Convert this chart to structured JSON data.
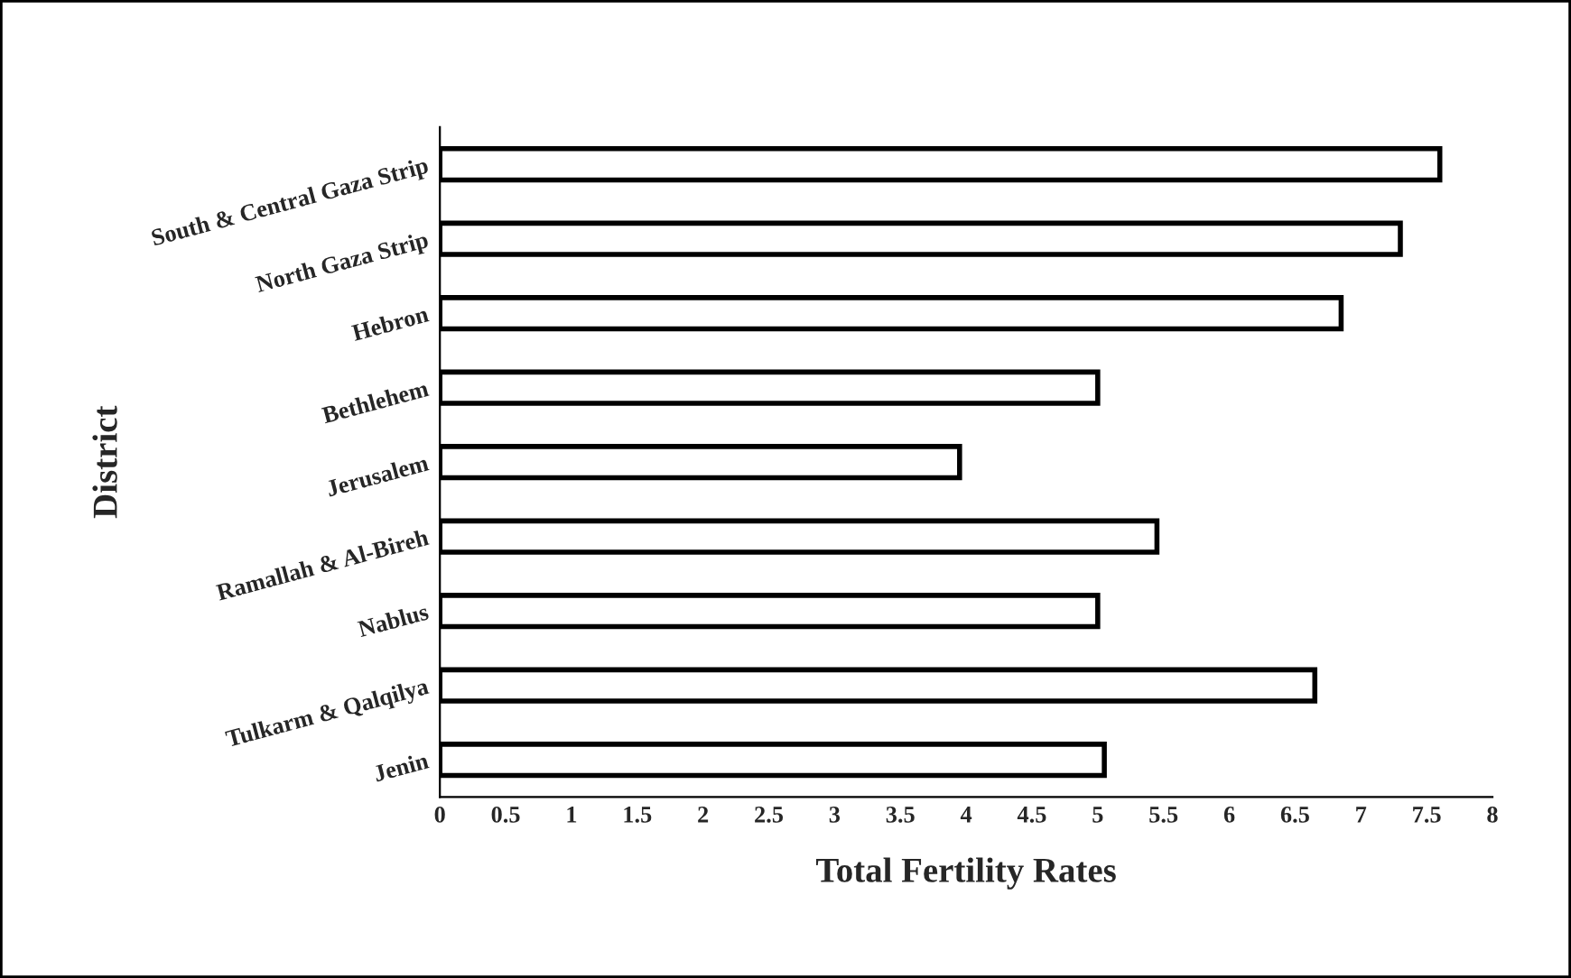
{
  "chart_data": {
    "type": "bar",
    "orientation": "horizontal",
    "xlabel": "Total Fertility Rates",
    "ylabel": "District",
    "categories": [
      "South & Central Gaza Strip",
      "North Gaza Strip",
      "Hebron",
      "Bethlehem",
      "Jerusalem",
      "Ramallah & Al-Bireh",
      "Nablus",
      "Tulkarm & Qalqilya",
      "Jenin"
    ],
    "values": [
      7.6,
      7.3,
      6.85,
      5.0,
      3.95,
      5.45,
      5.0,
      6.65,
      5.05
    ],
    "color": "#ffffff",
    "xlim": [
      0,
      8
    ],
    "xticks": [
      0,
      0.5,
      1,
      1.5,
      2,
      2.5,
      3,
      3.5,
      4,
      4.5,
      5,
      5.5,
      6,
      6.5,
      7,
      7.5,
      8
    ],
    "grid": false,
    "legend": false
  }
}
